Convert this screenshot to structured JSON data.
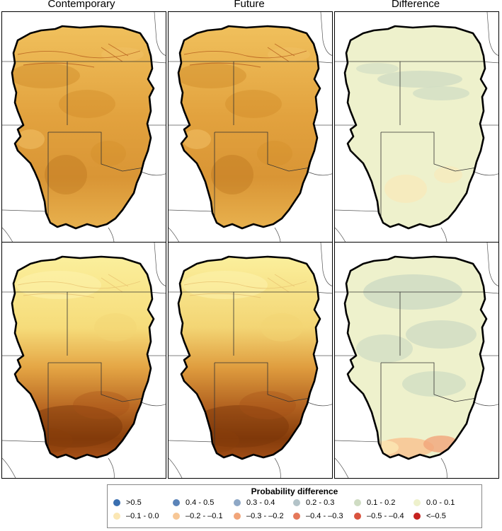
{
  "columns": [
    "Contemporary",
    "Future",
    "Difference"
  ],
  "legend": {
    "title": "Probability difference",
    "items": [
      {
        "label": ">0.5",
        "color": "#3a6fb0"
      },
      {
        "label": "0.4 - 0.5",
        "color": "#5b84b9"
      },
      {
        "label": "0.3 - 0.4",
        "color": "#8ea8c6"
      },
      {
        "label": "0.2 - 0.3",
        "color": "#b3c3c8"
      },
      {
        "label": "0.1 - 0.2",
        "color": "#cfdcc3"
      },
      {
        "label": "0.0 - 0.1",
        "color": "#eef1cc"
      },
      {
        "label": "–0.1 - 0.0",
        "color": "#fbe7b4"
      },
      {
        "label": "–0.2 - –0.1",
        "color": "#f7c796"
      },
      {
        "label": "–0.3 - –0.2",
        "color": "#f1a57a"
      },
      {
        "label": "–0.4 - –0.3",
        "color": "#e5785a"
      },
      {
        "label": "–0.5 - –0.4",
        "color": "#d9533e"
      },
      {
        "label": "<–0.5",
        "color": "#c5221f"
      }
    ]
  },
  "colors": {
    "top_prob_light": "#f3c46a",
    "top_prob_dark": "#c9821f",
    "bottom_prob_light": "#fbef9c",
    "bottom_prob_dark": "#8a3f0b",
    "diff_base": "#eef1cc",
    "diff_green": "#cfdcc3",
    "diff_orange": "#f7c796"
  }
}
